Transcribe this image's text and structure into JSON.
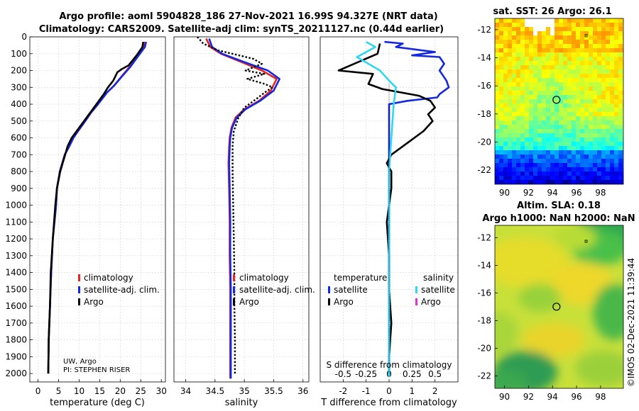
{
  "header": {
    "line1": "Argo profile: aoml 5904828_186 27-Nov-2021 16.99S 94.327E (NRT data)",
    "line2": "Climatology: CARS2009. Satellite-adj clim: synTS_20211127.nc (0.44d earlier)"
  },
  "colors": {
    "climatology": "#e8261f",
    "satellite_adj": "#1428e0",
    "argo": "#000000",
    "sal_satellite": "#2fd8f2",
    "sal_argo": "#e030d0"
  },
  "chart_data": [
    {
      "type": "line",
      "id": "temperature",
      "xlabel": "temperature (deg C)",
      "ylim": [
        2050,
        0
      ],
      "yticks": [
        0,
        100,
        200,
        300,
        400,
        500,
        600,
        700,
        800,
        900,
        1000,
        1100,
        1200,
        1300,
        1400,
        1500,
        1600,
        1700,
        1800,
        1900,
        2000
      ],
      "xlim": [
        -2,
        31
      ],
      "xticks": [
        0,
        5,
        10,
        15,
        20,
        25,
        30
      ],
      "xticklabels": [
        "0",
        "5",
        "10",
        "15",
        "20",
        "25",
        "30"
      ],
      "legend": [
        "climatology",
        "satellite-adj. clim.",
        "Argo"
      ],
      "legend_loc": "center-right",
      "annotation": [
        "UW, Argo",
        "PI: STEPHEN RISER"
      ],
      "series": [
        {
          "name": "climatology",
          "color": "#e8261f",
          "x": [
            26,
            25.6,
            24,
            22.2,
            20.5,
            18.5,
            16.8,
            14.6,
            12.9,
            11.5,
            10,
            8.6,
            7.6,
            6.5,
            5.3,
            4.6,
            4.4,
            3.6,
            3.2,
            2.9,
            2.6,
            2.5
          ],
          "y": [
            30,
            60,
            110,
            180,
            230,
            290,
            330,
            400,
            450,
            500,
            550,
            600,
            650,
            700,
            800,
            900,
            1000,
            1200,
            1400,
            1600,
            1800,
            2000
          ]
        },
        {
          "name": "satellite-adj. clim.",
          "color": "#1428e0",
          "x": [
            26.3,
            26,
            24.5,
            22.4,
            20.6,
            18.5,
            16.8,
            14.6,
            12.9,
            11.5,
            10,
            8.6,
            7.6,
            6.5,
            5.3,
            4.6,
            4.4,
            3.6,
            3.2,
            2.9,
            2.6,
            2.5
          ],
          "y": [
            30,
            60,
            110,
            180,
            230,
            290,
            330,
            400,
            450,
            500,
            550,
            600,
            650,
            700,
            800,
            900,
            1000,
            1200,
            1400,
            1600,
            1800,
            2000
          ]
        },
        {
          "name": "Argo",
          "color": "#000000",
          "x": [
            25.6,
            25.4,
            24,
            22,
            20.5,
            19.3,
            18.3,
            17,
            16,
            14.2,
            12.7,
            11.2,
            9.7,
            8.2,
            7.2,
            6.6,
            5.4,
            4.6,
            4.2,
            3.6,
            3.1,
            2.9,
            2.6,
            2.5
          ],
          "y": [
            30,
            60,
            110,
            170,
            190,
            210,
            260,
            300,
            340,
            400,
            450,
            500,
            550,
            600,
            650,
            700,
            800,
            900,
            1000,
            1200,
            1400,
            1600,
            1800,
            2000
          ]
        }
      ]
    },
    {
      "type": "line",
      "id": "salinity",
      "xlabel": "salinity",
      "ylim": [
        2050,
        0
      ],
      "xlim": [
        33.8,
        36.1
      ],
      "xticks": [
        34,
        34.5,
        35,
        35.5,
        36
      ],
      "xticklabels": [
        "34",
        "34.5",
        "35",
        "35.5",
        "36"
      ],
      "legend": [
        "climatology",
        "satellite-adj. clim.",
        "Argo"
      ],
      "legend_loc": "center-right",
      "series": [
        {
          "name": "climatology",
          "color": "#e8261f",
          "x": [
            34.35,
            34.42,
            34.6,
            34.95,
            35.3,
            35.55,
            35.45,
            35.25,
            35,
            34.85,
            34.78,
            34.75,
            34.74,
            34.73,
            34.74,
            34.75,
            34.75,
            34.76,
            34.76,
            34.76,
            34.76
          ],
          "y": [
            10,
            60,
            100,
            150,
            200,
            250,
            320,
            380,
            430,
            480,
            540,
            600,
            660,
            750,
            900,
            1100,
            1300,
            1500,
            1700,
            1900,
            2030
          ]
        },
        {
          "name": "satellite-adj. clim.",
          "color": "#1428e0",
          "x": [
            34.4,
            34.45,
            34.62,
            35.0,
            35.4,
            35.6,
            35.5,
            35.27,
            35.02,
            34.87,
            34.79,
            34.76,
            34.75,
            34.74,
            34.75,
            34.76,
            34.76,
            34.77,
            34.77,
            34.77,
            34.77
          ],
          "y": [
            10,
            60,
            100,
            150,
            200,
            250,
            320,
            380,
            430,
            480,
            540,
            600,
            660,
            750,
            900,
            1100,
            1300,
            1500,
            1700,
            1900,
            2030
          ]
        },
        {
          "name": "Argo",
          "color": "#000000",
          "dashed": true,
          "x": [
            34.2,
            34.3,
            34.55,
            35.15,
            35.3,
            35.02,
            35.34,
            35.05,
            35.35,
            35.48,
            35.35,
            35.2,
            35.0,
            34.9,
            34.82,
            34.8,
            34.8,
            34.81,
            34.82,
            34.83,
            34.83,
            34.84,
            34.84
          ],
          "y": [
            0,
            40,
            80,
            130,
            160,
            200,
            220,
            250,
            280,
            300,
            330,
            370,
            420,
            480,
            560,
            650,
            800,
            1000,
            1200,
            1400,
            1600,
            1800,
            2000
          ]
        }
      ]
    },
    {
      "type": "line",
      "id": "difference",
      "xlabel": "T difference from climatology",
      "xlabel_top": "S difference from climatology",
      "ylim": [
        2050,
        0
      ],
      "xlim": [
        -3,
        3
      ],
      "xticks": [
        -2,
        -1,
        0,
        1,
        2
      ],
      "xticklabels": [
        "-2",
        "-1",
        "0",
        "1",
        "2"
      ],
      "xticks_s": [
        -0.5,
        -0.25,
        0,
        0.25,
        0.5
      ],
      "xticklabels_s": [
        "-0.5",
        "-0.25",
        "0",
        "0.25",
        "0.5"
      ],
      "legend_temperature": {
        "title": "temperature",
        "items": [
          "satellite",
          "Argo"
        ]
      },
      "legend_salinity": {
        "title": "salinity",
        "items": [
          "satellite",
          "Argo"
        ]
      },
      "series": [
        {
          "name": "temperature satellite",
          "color": "#1428e0",
          "x": [
            -0.2,
            0.6,
            0.3,
            2.0,
            1.0,
            2.2,
            2.4,
            2.2,
            2.5,
            2.6,
            2.2,
            2.1,
            0.8,
            0.0,
            0.0,
            0.0,
            0.0,
            0.0,
            0.0,
            0.0
          ],
          "y": [
            30,
            40,
            60,
            90,
            110,
            120,
            160,
            200,
            260,
            300,
            340,
            360,
            380,
            400,
            420,
            600,
            900,
            1400,
            1800,
            2020
          ]
        },
        {
          "name": "temperature Argo",
          "color": "#000000",
          "x": [
            -0.4,
            -0.5,
            -2.2,
            -0.7,
            -0.9,
            -0.3,
            1.3,
            1.8,
            2.0,
            1.7,
            1.9,
            1.5,
            0.9,
            0.1,
            -0.1,
            0.1,
            0.1,
            -0.1,
            0.0,
            0.0,
            0.1,
            0.0,
            0.0
          ],
          "y": [
            40,
            100,
            200,
            220,
            280,
            310,
            350,
            380,
            420,
            460,
            500,
            560,
            620,
            700,
            750,
            800,
            900,
            1100,
            1300,
            1500,
            1700,
            1900,
            2000
          ]
        },
        {
          "name": "salinity satellite",
          "color": "#2fd8f2",
          "x": [
            -1.0,
            -0.6,
            -1.4,
            -0.4,
            0.0,
            0.3,
            0.2,
            0.1,
            0.0,
            0.0,
            0.0,
            0.0,
            0.0
          ],
          "y": [
            30,
            60,
            120,
            200,
            260,
            300,
            400,
            600,
            800,
            1000,
            1400,
            1800,
            2020
          ]
        }
      ],
      "dotted_zero": true
    }
  ],
  "maps": [
    {
      "title": "sat. SST: 26 Argo: 26.1",
      "xlim": [
        89.2,
        99.9
      ],
      "ylim": [
        -23,
        -11.2
      ],
      "xticks": [
        90,
        92,
        94,
        96,
        98
      ],
      "xticklabels": [
        "90",
        "92",
        "94",
        "96",
        "98"
      ],
      "yticks": [
        -12,
        -14,
        -16,
        -18,
        -20,
        -22
      ],
      "yticklabels": [
        "-12",
        "-14",
        "-16",
        "-18",
        "-20",
        "-22"
      ],
      "marker": {
        "lon": 94.33,
        "lat": -16.99
      }
    },
    {
      "title_line1": "Altim. SLA: 0.18",
      "title_line2": "Argo h1000: NaN h2000: NaN",
      "xlim": [
        89.2,
        99.9
      ],
      "ylim": [
        -22.9,
        -11.1
      ],
      "xticks": [
        90,
        92,
        94,
        96,
        98
      ],
      "xticklabels": [
        "90",
        "92",
        "94",
        "96",
        "98"
      ],
      "yticks": [
        -12,
        -14,
        -16,
        -18,
        -20,
        -22
      ],
      "yticklabels": [
        "-12",
        "-14",
        "-16",
        "-18",
        "-20",
        "-22"
      ],
      "marker": {
        "lon": 94.33,
        "lat": -16.99
      }
    }
  ],
  "credit": "©IMOS 02-Dec-2021 11:39:44"
}
